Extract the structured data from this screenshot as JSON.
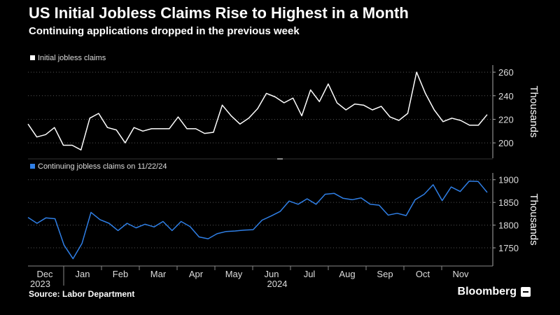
{
  "header": {
    "title": "US Initial Jobless Claims Rise to Highest in a Month",
    "subtitle": "Continuing applications dropped in the previous week"
  },
  "footer": {
    "source": "Source: Labor Department",
    "brand": "Bloomberg"
  },
  "colors": {
    "background": "#000000",
    "initial_line": "#ffffff",
    "continuing_line": "#2f7fe6",
    "grid": "#555555"
  },
  "x_axis": {
    "months": [
      "Dec",
      "Jan",
      "Feb",
      "Mar",
      "Apr",
      "May",
      "Jun",
      "Jul",
      "Aug",
      "Sep",
      "Oct",
      "Nov"
    ],
    "years": [
      "2023",
      "2024"
    ]
  },
  "chart_data": [
    {
      "type": "line",
      "legend_placement": "top-left",
      "ylabel": "Thousands",
      "ylim": [
        187,
        266
      ],
      "yticks": [
        200,
        220,
        240,
        260
      ],
      "grid": true,
      "series": [
        {
          "name": "Initial jobless claims",
          "values": [
            216,
            205,
            207,
            213,
            198,
            198,
            194,
            221,
            225,
            213,
            211,
            200,
            213,
            210,
            212,
            212,
            212,
            222,
            212,
            212,
            208,
            209,
            232,
            223,
            216,
            221,
            229,
            242,
            239,
            234,
            238,
            223,
            245,
            235,
            250,
            234,
            228,
            233,
            232,
            228,
            231,
            222,
            219,
            225,
            260,
            242,
            228,
            218,
            221,
            219,
            215,
            215,
            224
          ]
        }
      ]
    },
    {
      "type": "line",
      "legend_placement": "top-left",
      "ylabel": "Thousands",
      "ylim": [
        1710,
        1915
      ],
      "yticks": [
        1750,
        1800,
        1850,
        1900
      ],
      "grid": true,
      "series": [
        {
          "name": "Continuing jobless claims on 11/22/24",
          "values": [
            1817,
            1804,
            1816,
            1814,
            1756,
            1726,
            1760,
            1828,
            1812,
            1804,
            1788,
            1804,
            1794,
            1802,
            1796,
            1808,
            1788,
            1808,
            1797,
            1774,
            1770,
            1781,
            1786,
            1787,
            1789,
            1790,
            1811,
            1820,
            1830,
            1853,
            1846,
            1858,
            1846,
            1868,
            1870,
            1859,
            1856,
            1860,
            1846,
            1844,
            1822,
            1826,
            1821,
            1856,
            1868,
            1889,
            1854,
            1884,
            1874,
            1897,
            1896,
            1872
          ]
        }
      ]
    }
  ]
}
